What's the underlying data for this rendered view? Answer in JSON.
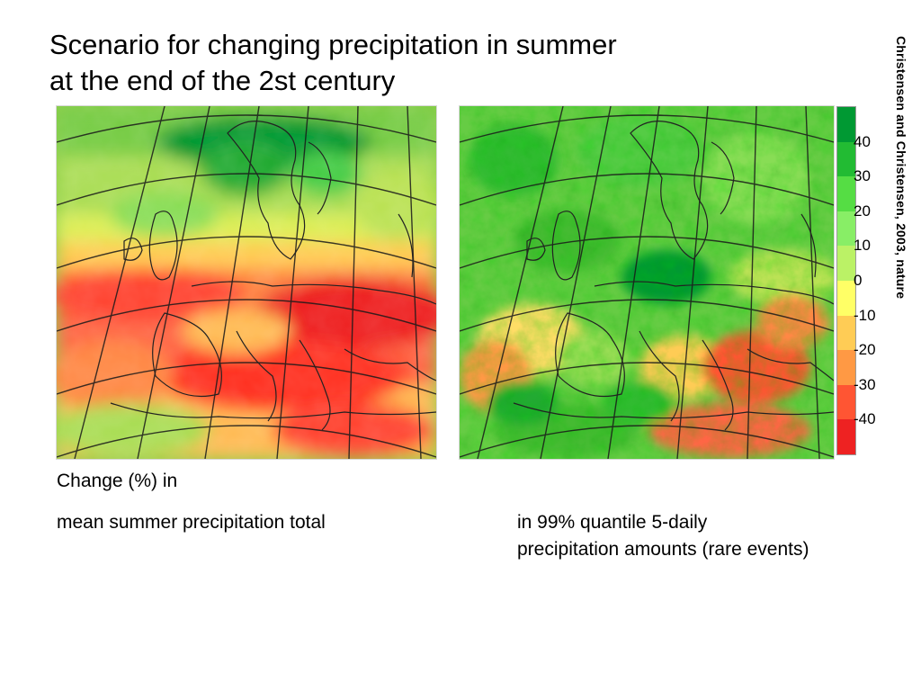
{
  "title": {
    "line1": "Scenario for changing precipitation in summer",
    "line2": "at the end of the 2st century"
  },
  "credit": "Christensen and Christensen, 2003, nature",
  "legend": {
    "ticks": [
      "40",
      "30",
      "20",
      "10",
      "0",
      "-10",
      "-20",
      "-30",
      "-40"
    ],
    "colors": [
      "#009933",
      "#22bb33",
      "#55dd44",
      "#88ee66",
      "#bbf266",
      "#ffff66",
      "#ffcc55",
      "#ff9944",
      "#ff5533",
      "#ee2222"
    ]
  },
  "maps": {
    "left": {
      "region": "Europe",
      "subject": "mean summer precipitation total change"
    },
    "right": {
      "region": "Europe",
      "subject": "99% quantile 5-daily precipitation amounts change"
    }
  },
  "captions": {
    "heading": "Change (%) in",
    "left": "mean summer precipitation total",
    "right_line1": "in 99% quantile 5-daily",
    "right_line2": "precipitation amounts (rare events)"
  }
}
